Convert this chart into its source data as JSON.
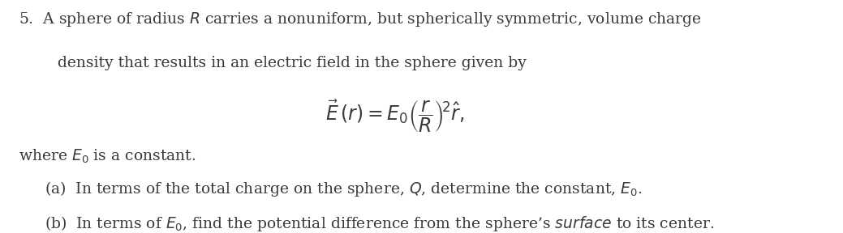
{
  "background_color": "#ffffff",
  "figsize": [
    10.39,
    2.88
  ],
  "dpi": 100,
  "text_color": "#3a3a3a",
  "font_size_main": 13.5,
  "font_size_eq": 17,
  "line1": "5.  A sphere of radius $R$ carries a nonuniform, but spherically symmetric, volume charge",
  "line2": "density that results in an electric field in the sphere given by",
  "equation": "$\\vec{E}\\,(r) = E_0 \\left(\\dfrac{r}{R}\\right)^{\\!2} \\hat{r},$",
  "line3": "where $E_0$ is a constant.",
  "line4a": "(a)  In terms of the total charge on the sphere, $Q$, determine the constant, $E_0$.",
  "line4b_pre": "(b)  In terms of $E_0$, find the potential difference from the sphere’s ",
  "line4b_italic": "$\\mathit{surface}$",
  "line4b_post": " to its center."
}
